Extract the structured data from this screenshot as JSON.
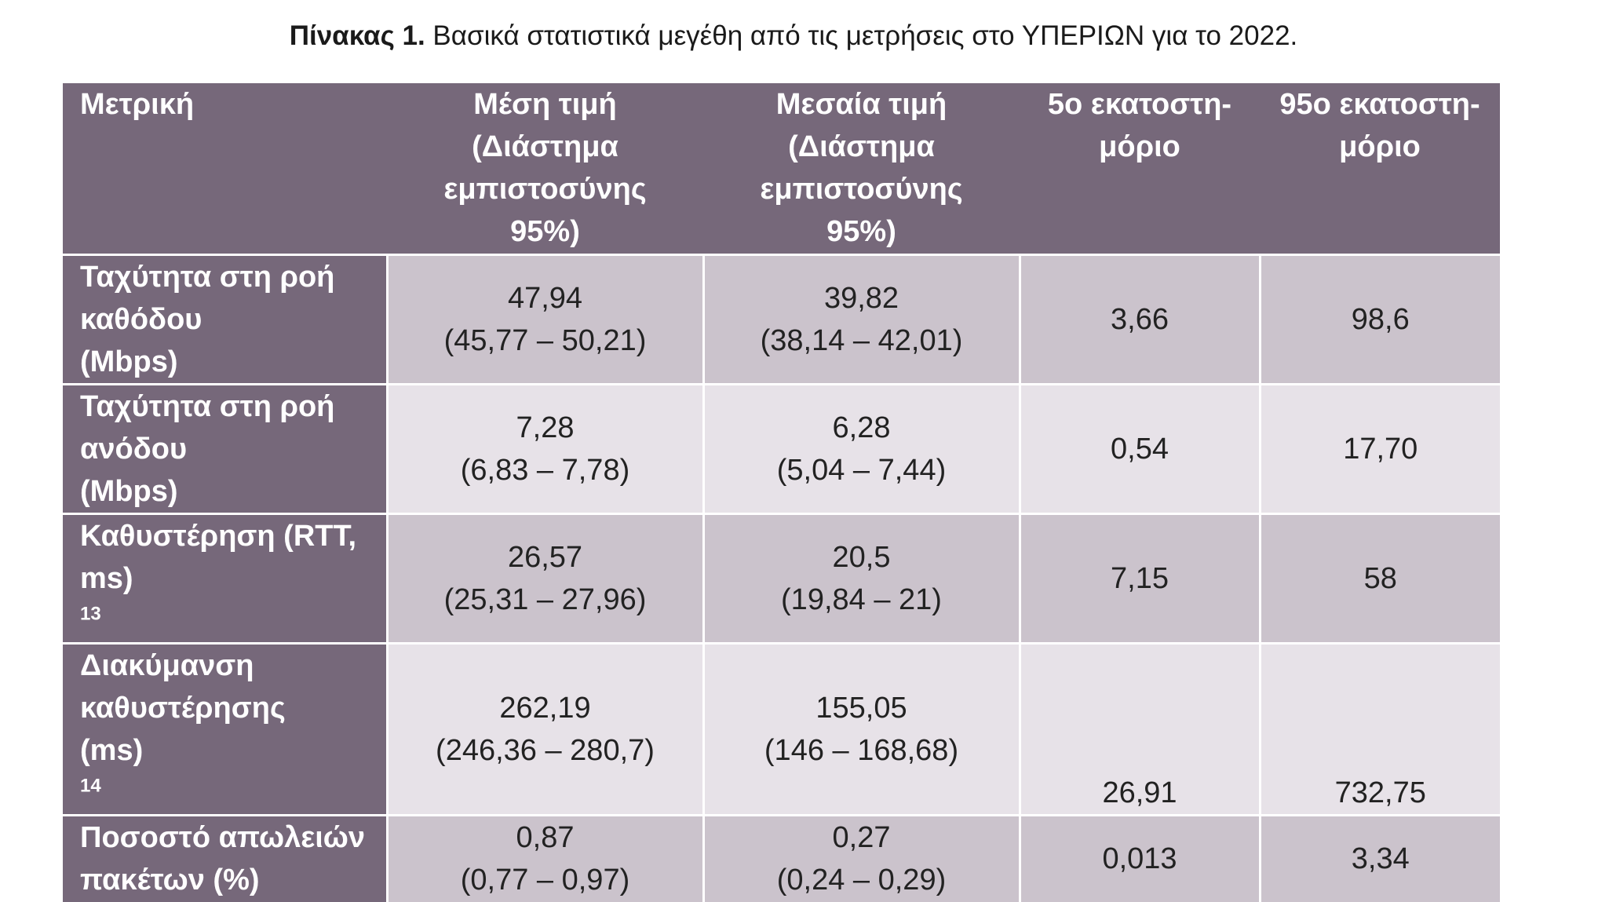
{
  "caption": {
    "label": "Πίνακας 1.",
    "text": " Βασικά στατιστικά μεγέθη από τις μετρήσεις στο ΥΠΕΡΙΩΝ για το 2022."
  },
  "table": {
    "headers": {
      "metric": "Μετρική",
      "mean": [
        "Μέση τιμή",
        "(Διάστημα",
        "εμπιστοσύνης",
        "95%)"
      ],
      "median": [
        "Μεσαία τιμή",
        "(Διάστημα",
        "εμπιστοσύνης",
        "95%)"
      ],
      "p5": [
        "5ο εκατοστη-",
        "μόριο"
      ],
      "p95": [
        "95ο εκατοστη-",
        "μόριο"
      ]
    },
    "rows": [
      {
        "metric": [
          "Ταχύτητα στη ροή",
          "καθόδου",
          "(Mbps)"
        ],
        "mean": [
          "47,94",
          "(45,77 – 50,21)"
        ],
        "median": [
          "39,82",
          "(38,14 – 42,01)"
        ],
        "p5": "3,66",
        "p95": "98,6"
      },
      {
        "metric": [
          "Ταχύτητα στη ροή",
          "ανόδου",
          "(Mbps)"
        ],
        "mean": [
          "7,28",
          "(6,83 – 7,78)"
        ],
        "median": [
          "6,28",
          "(5,04 – 7,44)"
        ],
        "p5": "0,54",
        "p95": "17,70"
      },
      {
        "metric": [
          "Καθυστέρηση (RTT,",
          "ms)"
        ],
        "metric_sup": "13",
        "mean": [
          "26,57",
          "(25,31 – 27,96)"
        ],
        "median": [
          "20,5",
          "(19,84 – 21)"
        ],
        "p5": "7,15",
        "p95": "58"
      },
      {
        "metric": [
          "Διακύμανση",
          "καθυστέρησης",
          "(ms)"
        ],
        "metric_sup": "14",
        "mean": [
          "262,19",
          "(246,36 – 280,7)"
        ],
        "median": [
          "155,05",
          "(146 – 168,68)"
        ],
        "p5": "26,91",
        "p95": "732,75"
      },
      {
        "metric": [
          "Ποσοστό απωλειών",
          "πακέτων (%)"
        ],
        "mean": [
          "0,87",
          "(0,77 – 0,97)"
        ],
        "median": [
          "0,27",
          "(0,24 – 0,29)"
        ],
        "p5": "0,013",
        "p95": "3,34"
      }
    ]
  }
}
